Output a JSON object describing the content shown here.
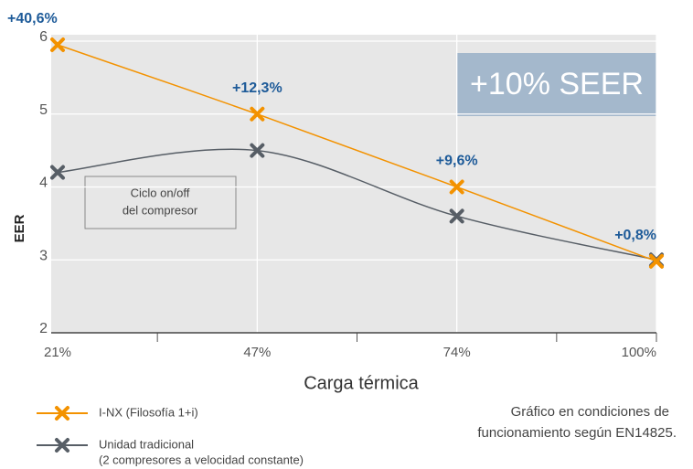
{
  "chart_data": {
    "type": "line",
    "y_label": "EER",
    "x_label": "Carga térmica",
    "categories": [
      "21%",
      "47%",
      "74%",
      "100%"
    ],
    "series": [
      {
        "name": "I-NX (Filosofía 1+i)",
        "color": "#f39200",
        "values": [
          5.95,
          5.0,
          4.0,
          2.98
        ],
        "annotations": [
          "+40,6%",
          "+12,3%",
          "+9,6%",
          "+0,8%"
        ]
      },
      {
        "name": "Unidad tradicional",
        "legend_note": "(2 compresores a velocidad constante)",
        "color": "#575e66",
        "values": [
          4.2,
          4.5,
          3.6,
          3.0
        ]
      }
    ],
    "ylim": [
      2,
      6
    ],
    "yticks": [
      2,
      3,
      4,
      5,
      6
    ],
    "grid": true,
    "highlight_box": "+10% SEER",
    "note_box": [
      "Ciclo on/off",
      "del compresor"
    ],
    "footnote": [
      "Gráfico en condiciones de",
      "funcionamiento según EN14825."
    ]
  }
}
